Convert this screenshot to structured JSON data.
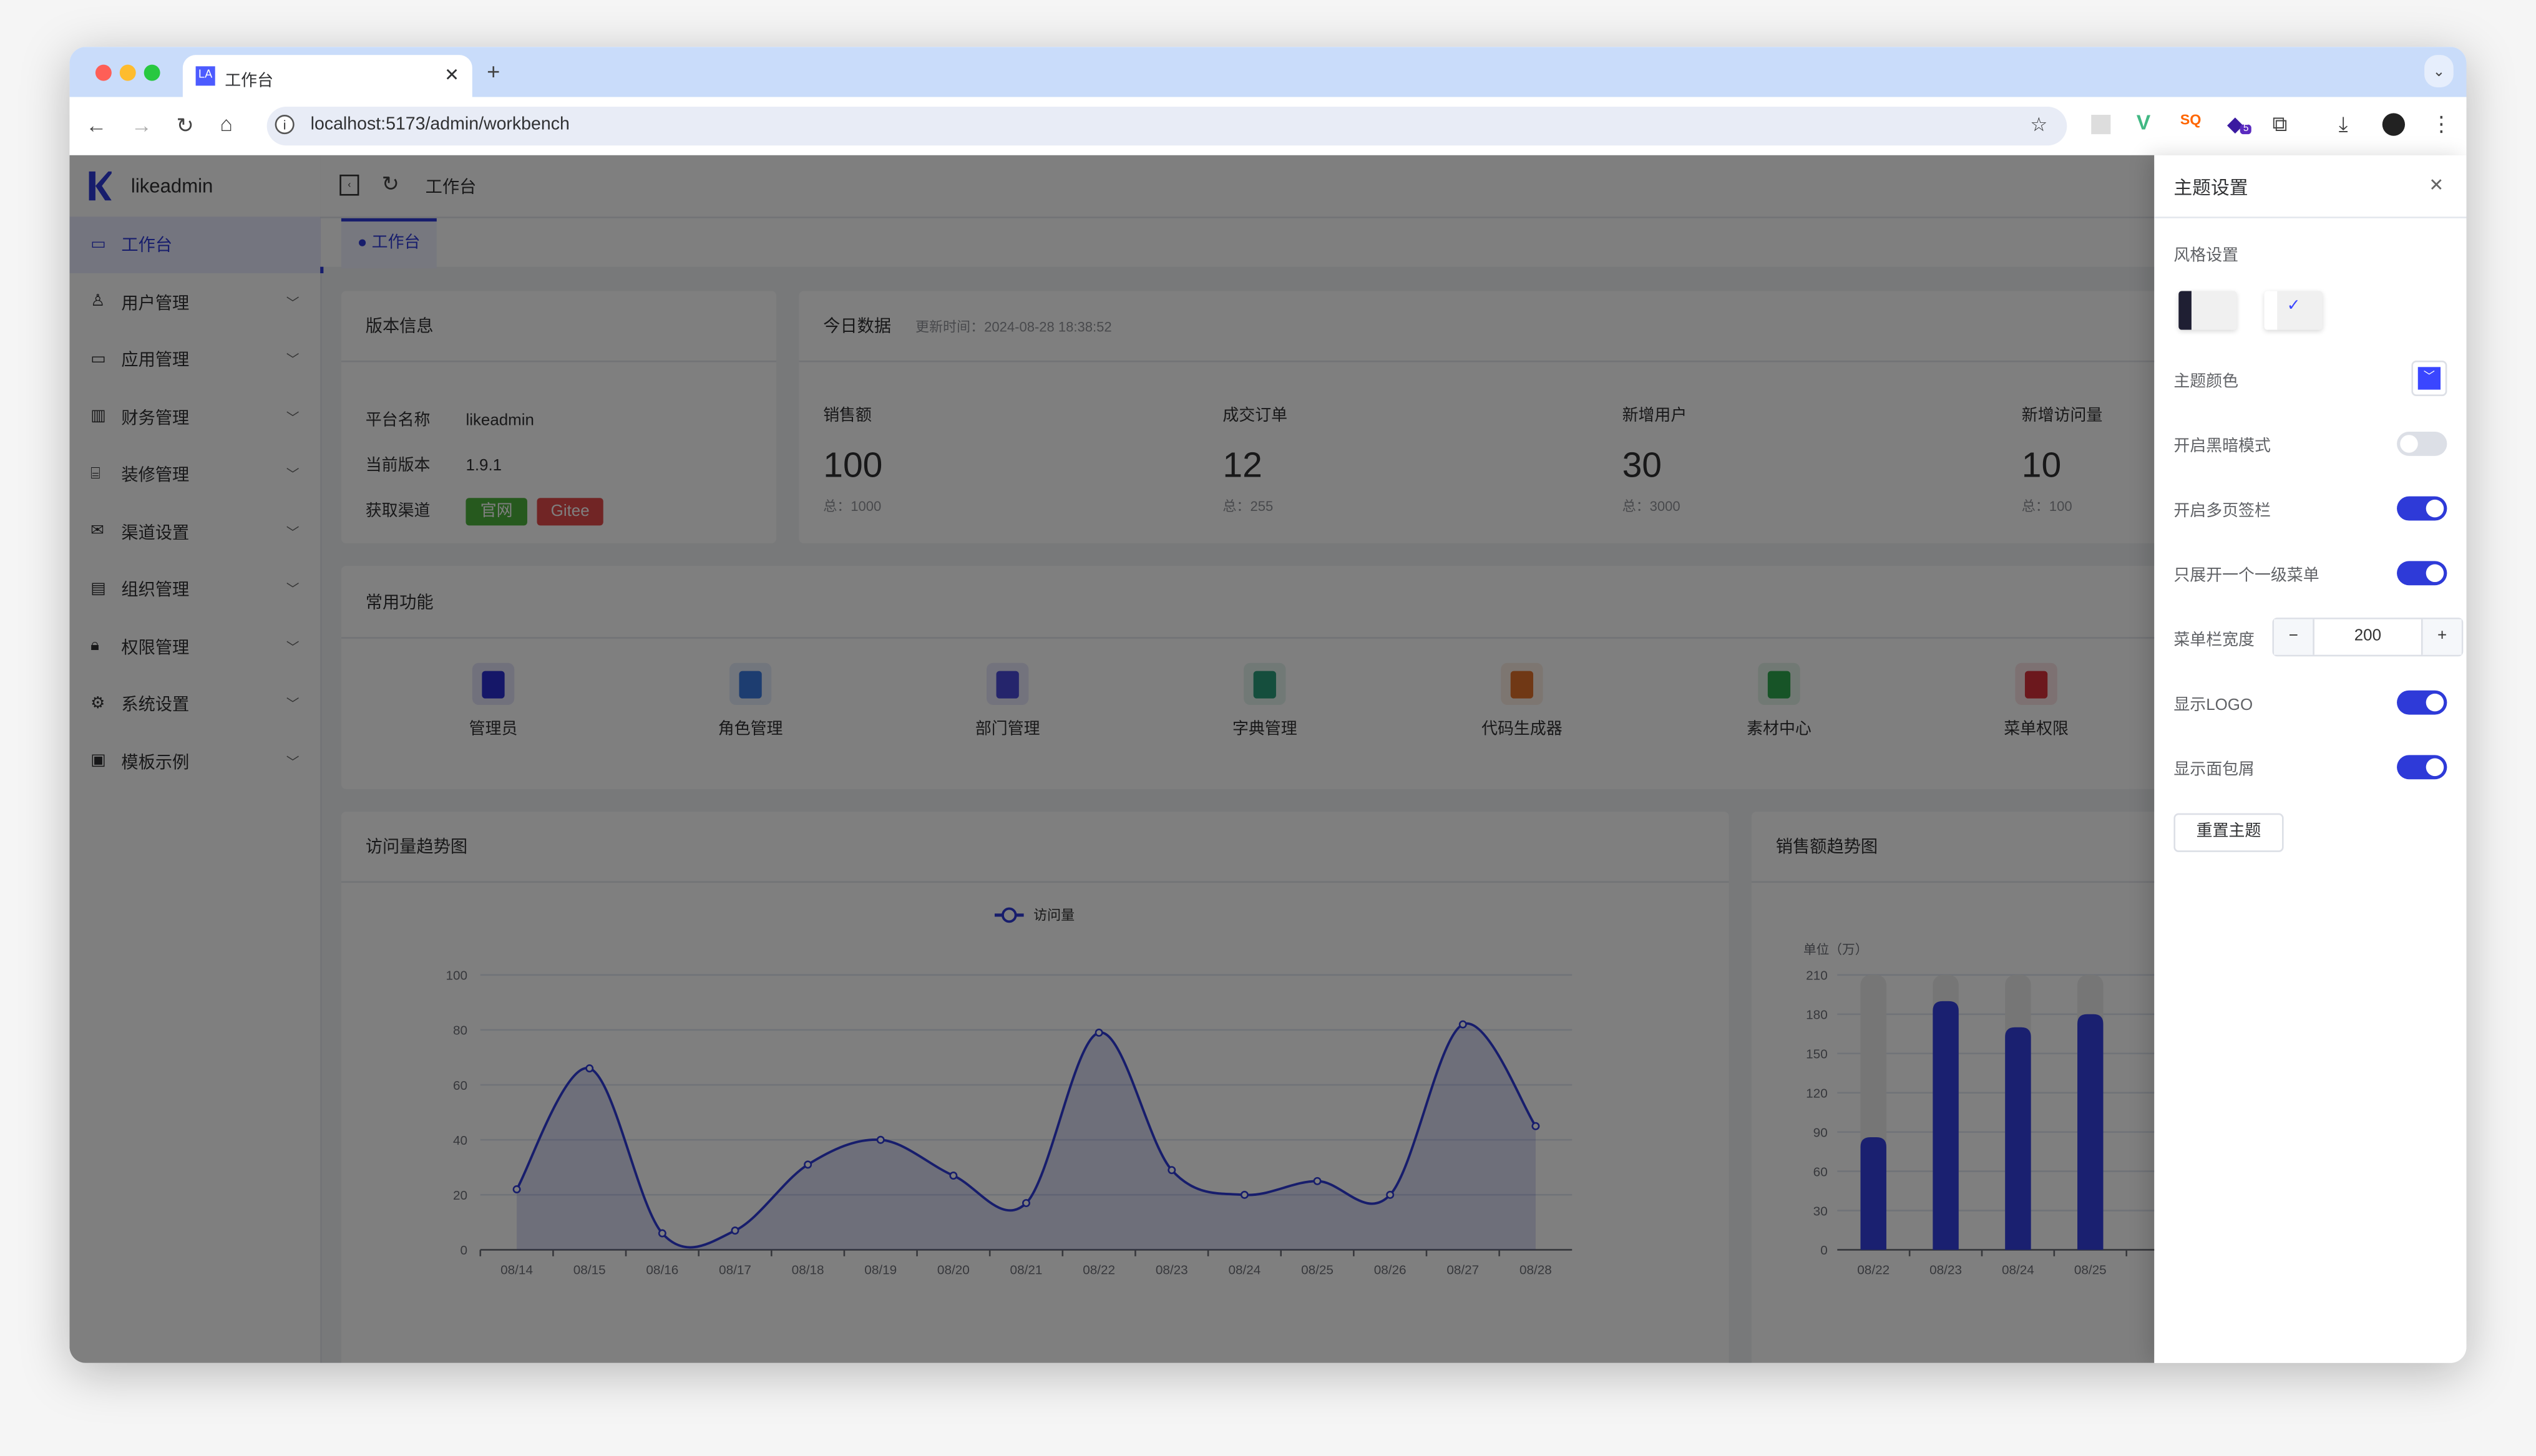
{
  "browser": {
    "tab_title": "工作台",
    "tab_favicon": "LA",
    "url": "localhost:5173/admin/workbench",
    "extension_badge": "5"
  },
  "app": {
    "logo_text": "likeadmin",
    "breadcrumb": "工作台",
    "page_tab": "工作台",
    "sidebar": [
      {
        "label": "工作台",
        "icon": "monitor-icon",
        "active": true
      },
      {
        "label": "用户管理",
        "icon": "user-icon"
      },
      {
        "label": "应用管理",
        "icon": "app-icon"
      },
      {
        "label": "财务管理",
        "icon": "finance-chart-icon"
      },
      {
        "label": "装修管理",
        "icon": "decoration-icon"
      },
      {
        "label": "渠道设置",
        "icon": "mail-icon"
      },
      {
        "label": "组织管理",
        "icon": "organization-icon"
      },
      {
        "label": "权限管理",
        "icon": "lock-icon"
      },
      {
        "label": "系统设置",
        "icon": "gear-icon"
      },
      {
        "label": "模板示例",
        "icon": "template-icon"
      }
    ],
    "version": {
      "title": "版本信息",
      "rows": [
        {
          "label": "平台名称",
          "value": "likeadmin"
        },
        {
          "label": "当前版本",
          "value": "1.9.1"
        }
      ],
      "channel_label": "获取渠道",
      "btn_official": "官网",
      "btn_gitee": "Gitee"
    },
    "today": {
      "title": "今日数据",
      "updated": "更新时间：2024-08-28 18:38:52",
      "stats": [
        {
          "label": "销售额",
          "value": "100",
          "total": "总：1000"
        },
        {
          "label": "成交订单",
          "value": "12",
          "total": "总：255"
        },
        {
          "label": "新增用户",
          "value": "30",
          "total": "总：3000"
        },
        {
          "label": "新增访问量",
          "value": "10",
          "total": "总：100"
        }
      ]
    },
    "functions": {
      "title": "常用功能",
      "items": [
        {
          "label": "管理员",
          "color": "#2a2fd0"
        },
        {
          "label": "角色管理",
          "color": "#3b7be0"
        },
        {
          "label": "部门管理",
          "color": "#4a4ad8"
        },
        {
          "label": "字典管理",
          "color": "#2a9d7a"
        },
        {
          "label": "代码生成器",
          "color": "#e0702a"
        },
        {
          "label": "素材中心",
          "color": "#2fa84f"
        },
        {
          "label": "菜单权限",
          "color": "#d8303a"
        }
      ]
    },
    "accent": "#2e3ad8"
  },
  "chart_data": [
    {
      "type": "line",
      "title": "访问量趋势图",
      "legend": "访问量",
      "smooth": true,
      "area": true,
      "categories": [
        "08/14",
        "08/15",
        "08/16",
        "08/17",
        "08/18",
        "08/19",
        "08/20",
        "08/21",
        "08/22",
        "08/23",
        "08/24",
        "08/25",
        "08/26",
        "08/27",
        "08/28"
      ],
      "series": [
        {
          "name": "访问量",
          "values": [
            22,
            66,
            6,
            7,
            31,
            40,
            27,
            17,
            79,
            29,
            20,
            25,
            20,
            82,
            45
          ]
        }
      ],
      "yticks": [
        0,
        20,
        40,
        60,
        80,
        100
      ],
      "ylim": [
        0,
        100
      ],
      "grid": true
    },
    {
      "type": "bar",
      "title": "销售额趋势图",
      "ylabel": "单位（万）",
      "categories": [
        "08/22",
        "08/23",
        "08/24",
        "08/25"
      ],
      "values": [
        86,
        190,
        170,
        180
      ],
      "yticks": [
        0,
        30,
        60,
        90,
        120,
        150,
        180,
        210
      ],
      "ylim": [
        0,
        210
      ],
      "grid": true
    }
  ],
  "drawer": {
    "title": "主题设置",
    "style_label": "风格设置",
    "theme_color_label": "主题颜色",
    "theme_color": "#3a46ff",
    "dark_mode": {
      "label": "开启黑暗模式",
      "on": false
    },
    "multi_tab": {
      "label": "开启多页签栏",
      "on": true
    },
    "unique_opened": {
      "label": "只展开一个一级菜单",
      "on": true
    },
    "menu_width": {
      "label": "菜单栏宽度",
      "value": "200"
    },
    "show_logo": {
      "label": "显示LOGO",
      "on": true
    },
    "show_crumb": {
      "label": "显示面包屑",
      "on": true
    },
    "reset": "重置主题"
  }
}
